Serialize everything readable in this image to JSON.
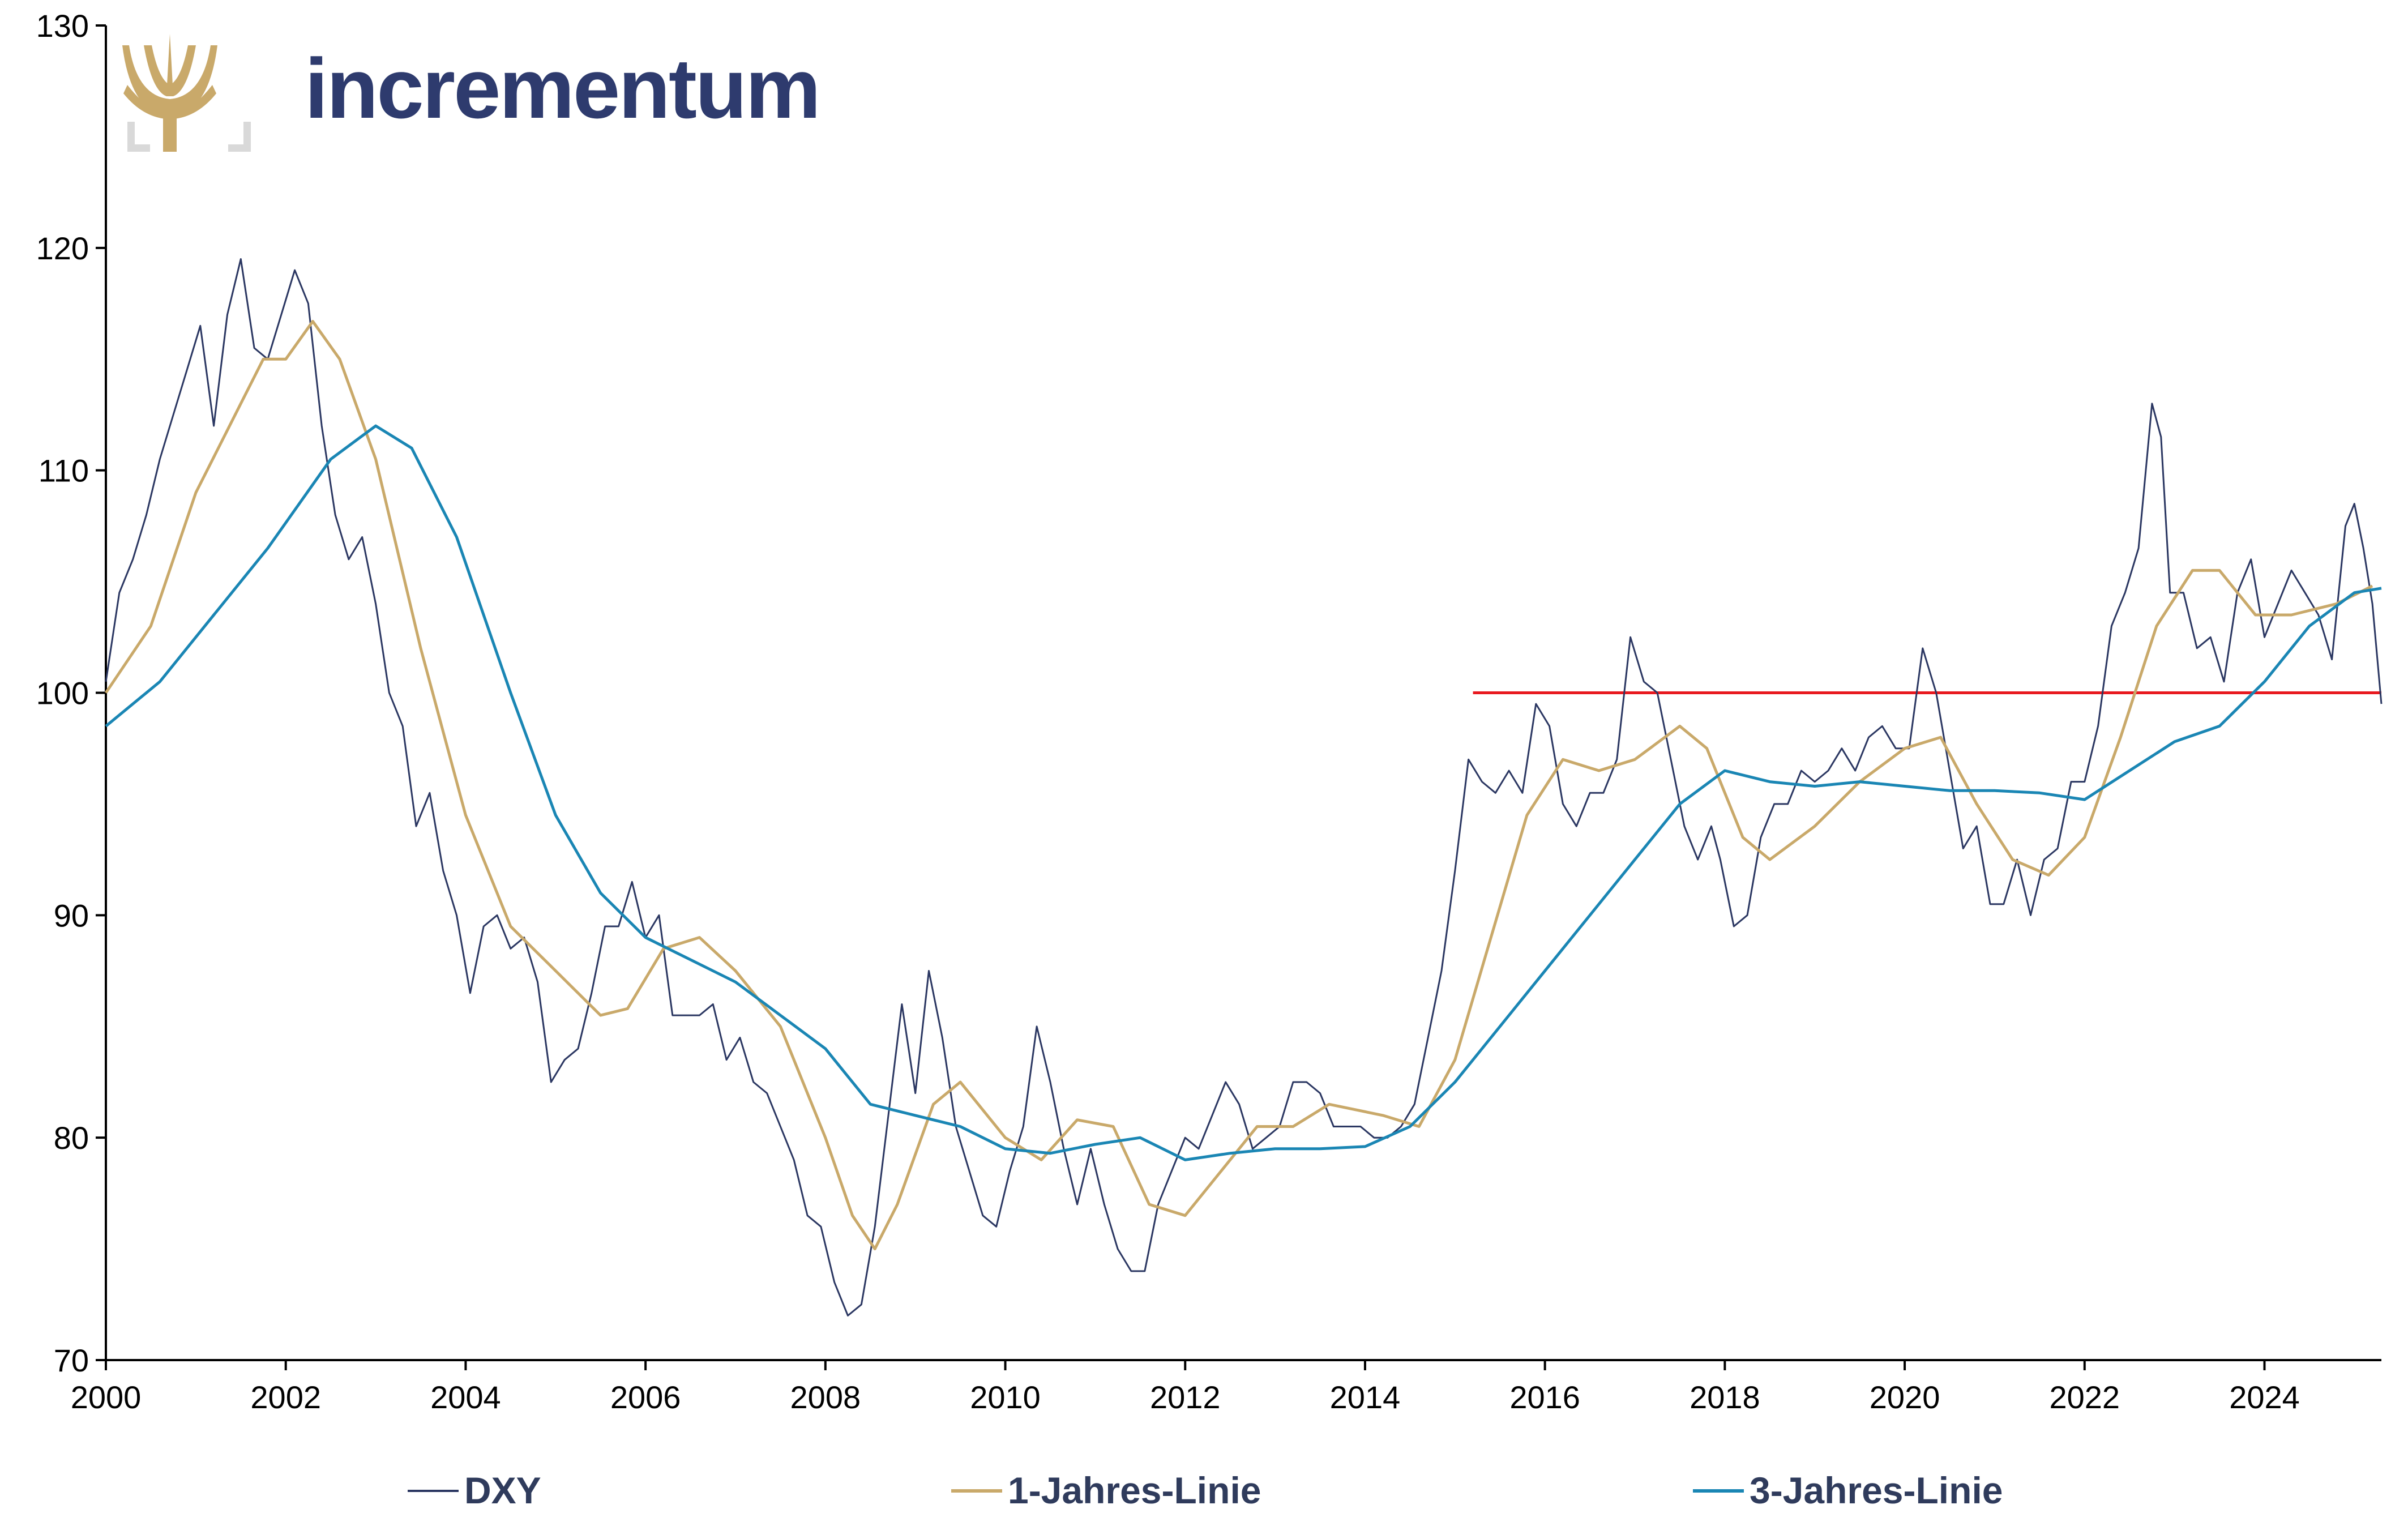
{
  "brand": {
    "name": "incrementum",
    "logo_icon": "tree-logo-icon"
  },
  "colors": {
    "dxy": "#2b3762",
    "one_year": "#c9a96a",
    "three_year": "#1a86b4",
    "reference": "#e8191f",
    "axis": "#000000"
  },
  "chart_data": {
    "type": "line",
    "title": "",
    "xlabel": "",
    "ylabel": "",
    "xlim": [
      2000,
      2025.3
    ],
    "ylim": [
      70,
      130
    ],
    "grid": false,
    "legend_position": "bottom",
    "x_ticks": [
      "2000",
      "2002",
      "2004",
      "2006",
      "2008",
      "2010",
      "2012",
      "2014",
      "2016",
      "2018",
      "2020",
      "2022",
      "2024"
    ],
    "y_ticks": [
      "70",
      "80",
      "90",
      "100",
      "110",
      "120",
      "130"
    ],
    "reference_line": {
      "y": 100,
      "x_start": 2015.2,
      "x_end": 2025.3
    },
    "series": [
      {
        "name": "DXY",
        "points": [
          [
            2000.0,
            100.5
          ],
          [
            2000.15,
            104.5
          ],
          [
            2000.3,
            106.0
          ],
          [
            2000.45,
            108.0
          ],
          [
            2000.6,
            110.5
          ],
          [
            2000.75,
            112.5
          ],
          [
            2000.9,
            114.5
          ],
          [
            2001.05,
            116.5
          ],
          [
            2001.2,
            112.0
          ],
          [
            2001.35,
            117.0
          ],
          [
            2001.5,
            119.5
          ],
          [
            2001.65,
            115.5
          ],
          [
            2001.8,
            115.0
          ],
          [
            2001.95,
            117.0
          ],
          [
            2002.1,
            119.0
          ],
          [
            2002.25,
            117.5
          ],
          [
            2002.4,
            112.0
          ],
          [
            2002.55,
            108.0
          ],
          [
            2002.7,
            106.0
          ],
          [
            2002.85,
            107.0
          ],
          [
            2003.0,
            104.0
          ],
          [
            2003.15,
            100.0
          ],
          [
            2003.3,
            98.5
          ],
          [
            2003.45,
            94.0
          ],
          [
            2003.6,
            95.5
          ],
          [
            2003.75,
            92.0
          ],
          [
            2003.9,
            90.0
          ],
          [
            2004.05,
            86.5
          ],
          [
            2004.2,
            89.5
          ],
          [
            2004.35,
            90.0
          ],
          [
            2004.5,
            88.5
          ],
          [
            2004.65,
            89.0
          ],
          [
            2004.8,
            87.0
          ],
          [
            2004.95,
            82.5
          ],
          [
            2005.1,
            83.5
          ],
          [
            2005.25,
            84.0
          ],
          [
            2005.4,
            86.5
          ],
          [
            2005.55,
            89.5
          ],
          [
            2005.7,
            89.5
          ],
          [
            2005.85,
            91.5
          ],
          [
            2006.0,
            89.0
          ],
          [
            2006.15,
            90.0
          ],
          [
            2006.3,
            85.5
          ],
          [
            2006.45,
            85.5
          ],
          [
            2006.6,
            85.5
          ],
          [
            2006.75,
            86.0
          ],
          [
            2006.9,
            83.5
          ],
          [
            2007.05,
            84.5
          ],
          [
            2007.2,
            82.5
          ],
          [
            2007.35,
            82.0
          ],
          [
            2007.5,
            80.5
          ],
          [
            2007.65,
            79.0
          ],
          [
            2007.8,
            76.5
          ],
          [
            2007.95,
            76.0
          ],
          [
            2008.1,
            73.5
          ],
          [
            2008.25,
            72.0
          ],
          [
            2008.4,
            72.5
          ],
          [
            2008.55,
            76.0
          ],
          [
            2008.7,
            81.0
          ],
          [
            2008.85,
            86.0
          ],
          [
            2009.0,
            82.0
          ],
          [
            2009.15,
            87.5
          ],
          [
            2009.3,
            84.5
          ],
          [
            2009.45,
            80.5
          ],
          [
            2009.6,
            78.5
          ],
          [
            2009.75,
            76.5
          ],
          [
            2009.9,
            76.0
          ],
          [
            2010.05,
            78.5
          ],
          [
            2010.2,
            80.5
          ],
          [
            2010.35,
            85.0
          ],
          [
            2010.5,
            82.5
          ],
          [
            2010.65,
            79.5
          ],
          [
            2010.8,
            77.0
          ],
          [
            2010.95,
            79.5
          ],
          [
            2011.1,
            77.0
          ],
          [
            2011.25,
            75.0
          ],
          [
            2011.4,
            74.0
          ],
          [
            2011.55,
            74.0
          ],
          [
            2011.7,
            77.0
          ],
          [
            2011.85,
            78.5
          ],
          [
            2012.0,
            80.0
          ],
          [
            2012.15,
            79.5
          ],
          [
            2012.3,
            81.0
          ],
          [
            2012.45,
            82.5
          ],
          [
            2012.6,
            81.5
          ],
          [
            2012.75,
            79.5
          ],
          [
            2012.9,
            80.0
          ],
          [
            2013.05,
            80.5
          ],
          [
            2013.2,
            82.5
          ],
          [
            2013.35,
            82.5
          ],
          [
            2013.5,
            82.0
          ],
          [
            2013.65,
            80.5
          ],
          [
            2013.8,
            80.5
          ],
          [
            2013.95,
            80.5
          ],
          [
            2014.1,
            80.0
          ],
          [
            2014.25,
            80.0
          ],
          [
            2014.4,
            80.5
          ],
          [
            2014.55,
            81.5
          ],
          [
            2014.7,
            84.5
          ],
          [
            2014.85,
            87.5
          ],
          [
            2015.0,
            92.0
          ],
          [
            2015.15,
            97.0
          ],
          [
            2015.3,
            96.0
          ],
          [
            2015.45,
            95.5
          ],
          [
            2015.6,
            96.5
          ],
          [
            2015.75,
            95.5
          ],
          [
            2015.9,
            99.5
          ],
          [
            2016.05,
            98.5
          ],
          [
            2016.2,
            95.0
          ],
          [
            2016.35,
            94.0
          ],
          [
            2016.5,
            95.5
          ],
          [
            2016.65,
            95.5
          ],
          [
            2016.8,
            97.0
          ],
          [
            2016.95,
            102.5
          ],
          [
            2017.1,
            100.5
          ],
          [
            2017.25,
            100.0
          ],
          [
            2017.4,
            97.0
          ],
          [
            2017.55,
            94.0
          ],
          [
            2017.7,
            92.5
          ],
          [
            2017.85,
            94.0
          ],
          [
            2017.95,
            92.5
          ],
          [
            2018.1,
            89.5
          ],
          [
            2018.25,
            90.0
          ],
          [
            2018.4,
            93.5
          ],
          [
            2018.55,
            95.0
          ],
          [
            2018.7,
            95.0
          ],
          [
            2018.85,
            96.5
          ],
          [
            2019.0,
            96.0
          ],
          [
            2019.15,
            96.5
          ],
          [
            2019.3,
            97.5
          ],
          [
            2019.45,
            96.5
          ],
          [
            2019.6,
            98.0
          ],
          [
            2019.75,
            98.5
          ],
          [
            2019.9,
            97.5
          ],
          [
            2020.05,
            97.5
          ],
          [
            2020.2,
            102.0
          ],
          [
            2020.35,
            100.0
          ],
          [
            2020.5,
            96.5
          ],
          [
            2020.65,
            93.0
          ],
          [
            2020.8,
            94.0
          ],
          [
            2020.95,
            90.5
          ],
          [
            2021.1,
            90.5
          ],
          [
            2021.25,
            92.5
          ],
          [
            2021.4,
            90.0
          ],
          [
            2021.55,
            92.5
          ],
          [
            2021.7,
            93.0
          ],
          [
            2021.85,
            96.0
          ],
          [
            2022.0,
            96.0
          ],
          [
            2022.15,
            98.5
          ],
          [
            2022.3,
            103.0
          ],
          [
            2022.45,
            104.5
          ],
          [
            2022.6,
            106.5
          ],
          [
            2022.75,
            113.0
          ],
          [
            2022.85,
            111.5
          ],
          [
            2022.95,
            104.5
          ],
          [
            2023.1,
            104.5
          ],
          [
            2023.25,
            102.0
          ],
          [
            2023.4,
            102.5
          ],
          [
            2023.55,
            100.5
          ],
          [
            2023.7,
            104.5
          ],
          [
            2023.85,
            106.0
          ],
          [
            2024.0,
            102.5
          ],
          [
            2024.15,
            104.0
          ],
          [
            2024.3,
            105.5
          ],
          [
            2024.45,
            104.5
          ],
          [
            2024.6,
            103.5
          ],
          [
            2024.75,
            101.5
          ],
          [
            2024.9,
            107.5
          ],
          [
            2025.0,
            108.5
          ],
          [
            2025.1,
            106.5
          ],
          [
            2025.2,
            104.0
          ],
          [
            2025.3,
            99.5
          ]
        ]
      },
      {
        "name": "1-Jahres-Linie",
        "points": [
          [
            2000.0,
            100.0
          ],
          [
            2000.5,
            103.0
          ],
          [
            2001.0,
            109.0
          ],
          [
            2001.5,
            113.0
          ],
          [
            2001.75,
            115.0
          ],
          [
            2002.0,
            115.0
          ],
          [
            2002.3,
            116.7
          ],
          [
            2002.6,
            115.0
          ],
          [
            2003.0,
            110.5
          ],
          [
            2003.5,
            102.0
          ],
          [
            2004.0,
            94.5
          ],
          [
            2004.5,
            89.5
          ],
          [
            2005.0,
            87.5
          ],
          [
            2005.5,
            85.5
          ],
          [
            2005.8,
            85.8
          ],
          [
            2006.2,
            88.5
          ],
          [
            2006.6,
            89.0
          ],
          [
            2007.0,
            87.5
          ],
          [
            2007.5,
            85.0
          ],
          [
            2008.0,
            80.0
          ],
          [
            2008.3,
            76.5
          ],
          [
            2008.55,
            75.0
          ],
          [
            2008.8,
            77.0
          ],
          [
            2009.2,
            81.5
          ],
          [
            2009.5,
            82.5
          ],
          [
            2010.0,
            80.0
          ],
          [
            2010.4,
            79.0
          ],
          [
            2010.8,
            80.8
          ],
          [
            2011.2,
            80.5
          ],
          [
            2011.6,
            77.0
          ],
          [
            2012.0,
            76.5
          ],
          [
            2012.4,
            78.5
          ],
          [
            2012.8,
            80.5
          ],
          [
            2013.2,
            80.5
          ],
          [
            2013.6,
            81.5
          ],
          [
            2014.2,
            81.0
          ],
          [
            2014.6,
            80.5
          ],
          [
            2015.0,
            83.5
          ],
          [
            2015.4,
            89.0
          ],
          [
            2015.8,
            94.5
          ],
          [
            2016.2,
            97.0
          ],
          [
            2016.6,
            96.5
          ],
          [
            2017.0,
            97.0
          ],
          [
            2017.5,
            98.5
          ],
          [
            2017.8,
            97.5
          ],
          [
            2018.2,
            93.5
          ],
          [
            2018.5,
            92.5
          ],
          [
            2019.0,
            94.0
          ],
          [
            2019.5,
            96.0
          ],
          [
            2020.0,
            97.5
          ],
          [
            2020.4,
            98.0
          ],
          [
            2020.8,
            95.0
          ],
          [
            2021.2,
            92.5
          ],
          [
            2021.6,
            91.8
          ],
          [
            2022.0,
            93.5
          ],
          [
            2022.4,
            98.0
          ],
          [
            2022.8,
            103.0
          ],
          [
            2023.2,
            105.5
          ],
          [
            2023.5,
            105.5
          ],
          [
            2023.9,
            103.5
          ],
          [
            2024.3,
            103.5
          ],
          [
            2024.8,
            104.0
          ],
          [
            2025.2,
            104.8
          ]
        ]
      },
      {
        "name": "3-Jahres-Linie",
        "points": [
          [
            2000.0,
            98.5
          ],
          [
            2000.6,
            100.5
          ],
          [
            2001.2,
            103.5
          ],
          [
            2001.8,
            106.5
          ],
          [
            2002.5,
            110.5
          ],
          [
            2003.0,
            112.0
          ],
          [
            2003.4,
            111.0
          ],
          [
            2003.9,
            107.0
          ],
          [
            2004.5,
            100.0
          ],
          [
            2005.0,
            94.5
          ],
          [
            2005.5,
            91.0
          ],
          [
            2006.0,
            89.0
          ],
          [
            2006.5,
            88.0
          ],
          [
            2007.0,
            87.0
          ],
          [
            2007.5,
            85.5
          ],
          [
            2008.0,
            84.0
          ],
          [
            2008.5,
            81.5
          ],
          [
            2009.0,
            81.0
          ],
          [
            2009.5,
            80.5
          ],
          [
            2010.0,
            79.5
          ],
          [
            2010.5,
            79.3
          ],
          [
            2011.0,
            79.7
          ],
          [
            2011.5,
            80.0
          ],
          [
            2012.0,
            79.0
          ],
          [
            2012.5,
            79.3
          ],
          [
            2013.0,
            79.5
          ],
          [
            2013.5,
            79.5
          ],
          [
            2014.0,
            79.6
          ],
          [
            2014.5,
            80.5
          ],
          [
            2015.0,
            82.5
          ],
          [
            2015.5,
            85.0
          ],
          [
            2016.0,
            87.5
          ],
          [
            2016.5,
            90.0
          ],
          [
            2017.0,
            92.5
          ],
          [
            2017.5,
            95.0
          ],
          [
            2018.0,
            96.5
          ],
          [
            2018.5,
            96.0
          ],
          [
            2019.0,
            95.8
          ],
          [
            2019.5,
            96.0
          ],
          [
            2020.0,
            95.8
          ],
          [
            2020.5,
            95.6
          ],
          [
            2021.0,
            95.6
          ],
          [
            2021.5,
            95.5
          ],
          [
            2022.0,
            95.2
          ],
          [
            2022.5,
            96.5
          ],
          [
            2023.0,
            97.8
          ],
          [
            2023.5,
            98.5
          ],
          [
            2024.0,
            100.5
          ],
          [
            2024.5,
            103.0
          ],
          [
            2025.0,
            104.5
          ],
          [
            2025.3,
            104.7
          ]
        ]
      }
    ]
  }
}
